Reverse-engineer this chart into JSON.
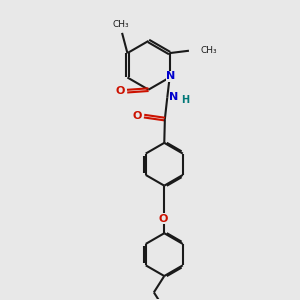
{
  "bg": "#e8e8e8",
  "bond_color": "#1a1a1a",
  "O_color": "#cc1100",
  "N_color": "#0000cc",
  "H_color": "#007777",
  "lw": 1.5,
  "dbo": 0.045,
  "inner_dbo": 0.042,
  "xlim": [
    0,
    10
  ],
  "ylim": [
    0,
    10
  ],
  "ring_r": 0.72
}
